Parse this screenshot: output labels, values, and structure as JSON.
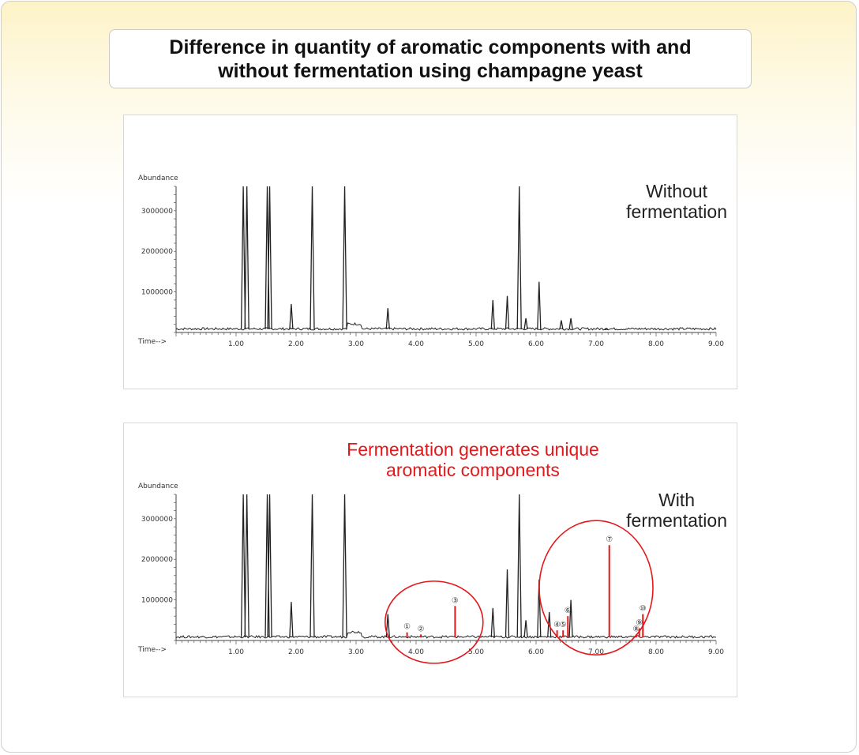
{
  "title": "Difference in quantity of aromatic components with and\nwithout fermentation using champagne yeast",
  "colors": {
    "trace": "#222222",
    "highlight": "#e4171b"
  },
  "chart_data": [
    {
      "type": "line",
      "label": "Without\nfermentation",
      "ylabel": "Abundance",
      "xlabel": "Time-->",
      "xlim": [
        0.0,
        9.0
      ],
      "ylim": [
        0,
        3600000
      ],
      "x_ticks": [
        "1.00",
        "2.00",
        "3.00",
        "4.00",
        "5.00",
        "6.00",
        "7.00",
        "8.00",
        "9.00"
      ],
      "y_ticks": [
        "1000000",
        "2000000",
        "3000000"
      ],
      "peaks": [
        {
          "x": 1.12,
          "y": 3600000
        },
        {
          "x": 1.18,
          "y": 3600000
        },
        {
          "x": 1.52,
          "y": 3600000
        },
        {
          "x": 1.56,
          "y": 3600000
        },
        {
          "x": 1.92,
          "y": 700000
        },
        {
          "x": 2.27,
          "y": 3600000
        },
        {
          "x": 2.81,
          "y": 3600000
        },
        {
          "x": 3.53,
          "y": 600000
        },
        {
          "x": 5.28,
          "y": 800000
        },
        {
          "x": 5.52,
          "y": 900000
        },
        {
          "x": 5.72,
          "y": 3600000
        },
        {
          "x": 5.83,
          "y": 350000
        },
        {
          "x": 6.05,
          "y": 1250000
        },
        {
          "x": 6.42,
          "y": 300000
        },
        {
          "x": 6.58,
          "y": 350000
        },
        {
          "x": 7.17,
          "y": 100000
        }
      ]
    },
    {
      "type": "line",
      "label": "With\nfermentation",
      "note": "Fermentation generates unique\naromatic components",
      "ylabel": "Abundance",
      "xlabel": "Time-->",
      "xlim": [
        0.0,
        9.0
      ],
      "ylim": [
        0,
        3600000
      ],
      "x_ticks": [
        "1.00",
        "2.00",
        "3.00",
        "4.00",
        "5.00",
        "6.00",
        "7.00",
        "8.00",
        "9.00"
      ],
      "y_ticks": [
        "1000000",
        "2000000",
        "3000000"
      ],
      "peaks": [
        {
          "x": 1.12,
          "y": 3600000
        },
        {
          "x": 1.18,
          "y": 3600000
        },
        {
          "x": 1.52,
          "y": 3600000
        },
        {
          "x": 1.56,
          "y": 3600000
        },
        {
          "x": 1.92,
          "y": 950000
        },
        {
          "x": 2.27,
          "y": 3600000
        },
        {
          "x": 2.81,
          "y": 3600000
        },
        {
          "x": 3.53,
          "y": 650000
        },
        {
          "x": 5.28,
          "y": 800000
        },
        {
          "x": 5.52,
          "y": 1750000
        },
        {
          "x": 5.72,
          "y": 3600000
        },
        {
          "x": 5.83,
          "y": 500000
        },
        {
          "x": 6.05,
          "y": 1500000
        },
        {
          "x": 6.22,
          "y": 700000
        },
        {
          "x": 6.58,
          "y": 1000000
        }
      ],
      "highlighted_peaks": [
        {
          "label": "①",
          "x": 3.85,
          "y": 200000
        },
        {
          "label": "②",
          "x": 4.08,
          "y": 150000
        },
        {
          "label": "③",
          "x": 4.65,
          "y": 850000
        },
        {
          "label": "④",
          "x": 6.35,
          "y": 250000
        },
        {
          "label": "⑤",
          "x": 6.45,
          "y": 250000
        },
        {
          "label": "⑥",
          "x": 6.53,
          "y": 600000
        },
        {
          "label": "⑦",
          "x": 7.22,
          "y": 2350000
        },
        {
          "label": "⑧",
          "x": 7.67,
          "y": 150000
        },
        {
          "label": "⑨",
          "x": 7.72,
          "y": 300000
        },
        {
          "label": "⑩",
          "x": 7.78,
          "y": 650000
        }
      ]
    }
  ]
}
